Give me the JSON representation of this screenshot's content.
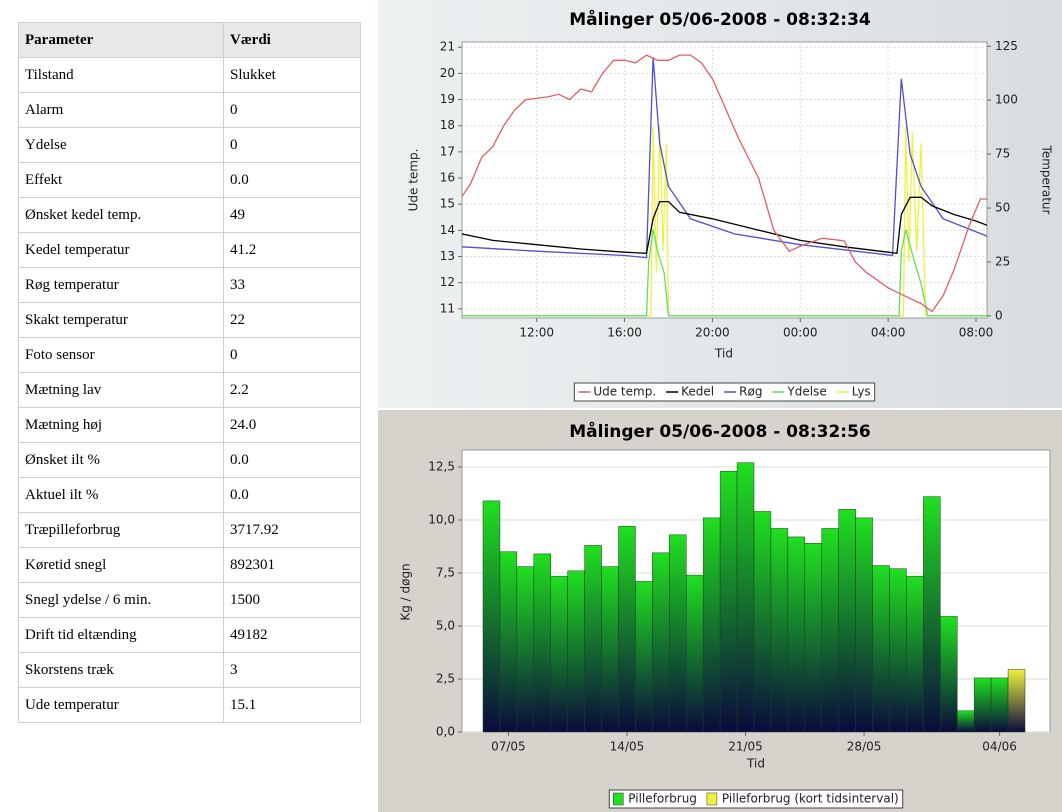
{
  "table": {
    "header": [
      "Parameter",
      "Værdi"
    ],
    "rows": [
      [
        "Tilstand",
        "Slukket"
      ],
      [
        "Alarm",
        "0"
      ],
      [
        "Ydelse",
        "0"
      ],
      [
        "Effekt",
        "0.0"
      ],
      [
        "Ønsket kedel temp.",
        "49"
      ],
      [
        "Kedel temperatur",
        "41.2"
      ],
      [
        "Røg temperatur",
        "33"
      ],
      [
        "Skakt temperatur",
        "22"
      ],
      [
        "Foto sensor",
        "0"
      ],
      [
        "Mætning lav",
        "2.2"
      ],
      [
        "Mætning høj",
        "24.0"
      ],
      [
        "Ønsket ilt %",
        "0.0"
      ],
      [
        "Aktuel ilt %",
        "0.0"
      ],
      [
        "Træpilleforbrug",
        "3717.92"
      ],
      [
        "Køretid snegl",
        "892301"
      ],
      [
        "Snegl ydelse / 6 min.",
        "1500"
      ],
      [
        "Drift tid eltænding",
        "49182"
      ],
      [
        "Skorstens træk",
        "3"
      ],
      [
        "Ude temperatur",
        "15.1"
      ]
    ]
  },
  "chart_data": [
    {
      "type": "line",
      "title": "Målinger 05/06-2008 - 08:32:34",
      "xlabel": "Tid",
      "ylabel": "Ude temp.",
      "y2label": "Temperatur",
      "xlim": [
        8.6,
        32.5
      ],
      "xticks": [
        {
          "value": 12,
          "label": "12:00"
        },
        {
          "value": 16,
          "label": "16:00"
        },
        {
          "value": 20,
          "label": "20:00"
        },
        {
          "value": 24,
          "label": "00:00"
        },
        {
          "value": 28,
          "label": "04:00"
        },
        {
          "value": 32,
          "label": "08:00"
        }
      ],
      "ylim": [
        10.65,
        21.2
      ],
      "yticks": [
        11,
        12,
        13,
        14,
        15,
        16,
        17,
        18,
        19,
        20,
        21
      ],
      "y2lim": [
        -1,
        127
      ],
      "y2ticks": [
        0,
        25,
        50,
        75,
        100,
        125
      ],
      "grid": true,
      "legend": "bottom",
      "series": [
        {
          "name": "Ude temp.",
          "color": "#e06060",
          "axis": "y",
          "x": [
            8.6,
            9,
            9.5,
            10,
            10.5,
            11,
            11.5,
            12.5,
            13,
            13.5,
            14,
            14.5,
            15,
            15.5,
            16,
            16.5,
            17,
            17.5,
            18,
            18.5,
            19,
            19.5,
            20,
            21.2,
            22.1,
            22.8,
            23.5,
            24,
            25,
            26,
            26.5,
            27,
            28,
            29,
            29.5,
            30,
            30.5,
            31,
            31.7,
            32.2,
            32.5
          ],
          "values": [
            15.3,
            15.8,
            16.8,
            17.2,
            18,
            18.6,
            19,
            19.1,
            19.2,
            19,
            19.4,
            19.3,
            20,
            20.5,
            20.5,
            20.4,
            20.7,
            20.5,
            20.5,
            20.7,
            20.7,
            20.4,
            19.8,
            17.5,
            16,
            14,
            13.2,
            13.4,
            13.7,
            13.6,
            12.8,
            12.4,
            11.8,
            11.4,
            11.2,
            10.9,
            11.5,
            12.5,
            14.2,
            15.2,
            15.2
          ]
        },
        {
          "name": "Kedel",
          "color": "#000000",
          "axis": "y2",
          "x": [
            8.6,
            10,
            12,
            14,
            16,
            17,
            17.3,
            17.6,
            18,
            18.5,
            20,
            22,
            24,
            26,
            28,
            28.4,
            28.6,
            29,
            29.5,
            30,
            31,
            32,
            32.5
          ],
          "values": [
            38,
            35,
            33,
            31,
            29.5,
            29,
            45,
            53,
            53,
            48,
            45,
            40,
            35,
            32,
            29.5,
            29,
            47,
            55,
            55,
            51,
            47,
            44,
            42
          ]
        },
        {
          "name": "Røg",
          "color": "#5050d0",
          "axis": "y2",
          "x": [
            8.6,
            12,
            16,
            17,
            17.3,
            17.6,
            18,
            19,
            21,
            24,
            28.2,
            28.6,
            29,
            29.5,
            30.5,
            32.5
          ],
          "values": [
            32,
            30,
            28,
            27,
            120,
            80,
            60,
            45,
            38,
            33,
            28,
            110,
            75,
            60,
            45,
            37
          ]
        },
        {
          "name": "Ydelse",
          "color": "#60e060",
          "axis": "y2",
          "x": [
            8.6,
            17,
            17.1,
            17.3,
            17.5,
            17.8,
            18,
            28.5,
            28.6,
            28.8,
            29.2,
            29.5,
            29.8,
            32.5
          ],
          "values": [
            0,
            0,
            25,
            40,
            30,
            20,
            0,
            0,
            30,
            40,
            25,
            15,
            0,
            0
          ]
        },
        {
          "name": "Lys",
          "color": "#f0f040",
          "axis": "y2",
          "x": [
            8.6,
            17.2,
            17.3,
            17.45,
            17.6,
            17.75,
            17.9,
            18,
            28.7,
            28.8,
            28.95,
            29.1,
            29.3,
            29.5,
            29.7,
            32.5
          ],
          "values": [
            0,
            0,
            88,
            20,
            88,
            30,
            80,
            0,
            0,
            88,
            25,
            85,
            30,
            80,
            0,
            0
          ]
        }
      ]
    },
    {
      "type": "bar",
      "title": "Målinger 05/06-2008 - 08:32:56",
      "xlabel": "Tid",
      "ylabel": "Kg / døgn",
      "categories": [
        null,
        "07/05",
        null,
        null,
        null,
        null,
        null,
        null,
        "14/05",
        null,
        null,
        null,
        null,
        null,
        null,
        "21/05",
        null,
        null,
        null,
        null,
        null,
        null,
        "28/05",
        null,
        null,
        null,
        null,
        null,
        null,
        null,
        "04/06",
        null
      ],
      "ylim": [
        0,
        13.3
      ],
      "yticks": [
        {
          "value": 0,
          "label": "0,0"
        },
        {
          "value": 2.5,
          "label": "2,5"
        },
        {
          "value": 5,
          "label": "5,0"
        },
        {
          "value": 7.5,
          "label": "7,5"
        },
        {
          "value": 10,
          "label": "10,0"
        },
        {
          "value": 12.5,
          "label": "12,5"
        }
      ],
      "grid": true,
      "legend": "bottom",
      "series": [
        {
          "name": "Pilleforbrug",
          "color": "#20e020",
          "values": [
            10.9,
            8.5,
            7.8,
            8.4,
            7.35,
            7.6,
            8.8,
            7.8,
            9.7,
            7.1,
            8.45,
            9.3,
            7.4,
            10.1,
            12.3,
            12.7,
            10.4,
            9.6,
            9.2,
            8.9,
            9.6,
            10.5,
            10.1,
            7.85,
            7.7,
            7.35,
            11.1,
            5.45,
            1.0,
            2.55,
            2.55,
            null
          ]
        },
        {
          "name": "Pilleforbrug (kort tidsinterval)",
          "color": "#f0f040",
          "values": [
            null,
            null,
            null,
            null,
            null,
            null,
            null,
            null,
            null,
            null,
            null,
            null,
            null,
            null,
            null,
            null,
            null,
            null,
            null,
            null,
            null,
            null,
            null,
            null,
            null,
            null,
            null,
            null,
            null,
            null,
            null,
            2.95
          ]
        }
      ]
    }
  ]
}
